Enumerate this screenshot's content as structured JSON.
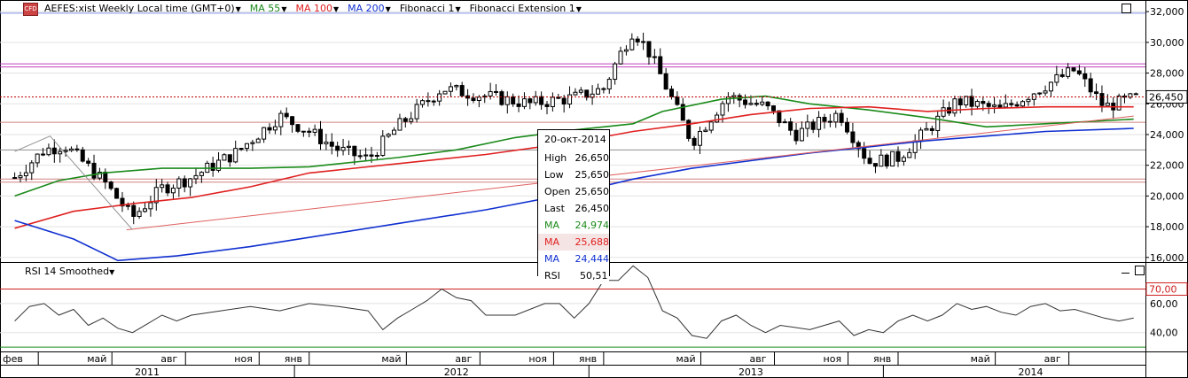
{
  "toolbar": {
    "symbol_icon_text": "CFD",
    "symbol": "AEFES:xist Weekly Local time (GMT+0)",
    "items": [
      {
        "label": "MA 55",
        "color": "#1a8a1a"
      },
      {
        "label": "MA 100",
        "color": "#e02020"
      },
      {
        "label": "MA 200",
        "color": "#1030d0"
      },
      {
        "label": "Fibonacci 1",
        "color": "#000000"
      },
      {
        "label": "Fibonacci Extension 1",
        "color": "#000000"
      }
    ]
  },
  "rsi_panel": {
    "label": "RSI 14 Smoothed",
    "levels": [
      {
        "value": 70,
        "label": "70,00",
        "color": "#d02020"
      },
      {
        "value": 30,
        "label": "",
        "color": "#1a8a1a"
      }
    ]
  },
  "tooltip": {
    "date": "20-окт-2014",
    "rows": [
      {
        "k": "High",
        "v": "26,650",
        "color": "#000000",
        "bg": "#ffffff"
      },
      {
        "k": "Low",
        "v": "25,650",
        "color": "#000000",
        "bg": "#ffffff"
      },
      {
        "k": "Open",
        "v": "25,650",
        "color": "#000000",
        "bg": "#ffffff"
      },
      {
        "k": "Last",
        "v": "26,450",
        "color": "#000000",
        "bg": "#ffffff"
      },
      {
        "k": "MA",
        "v": "24,974",
        "color": "#1a8a1a",
        "bg": "#ffffff"
      },
      {
        "k": "MA",
        "v": "25,688",
        "color": "#e02020",
        "bg": "#f4e4e4"
      },
      {
        "k": "MA",
        "v": "24,444",
        "color": "#1030d0",
        "bg": "#ffffff"
      },
      {
        "k": "RSI",
        "v": "50,51",
        "color": "#000000",
        "bg": "#ffffff"
      }
    ]
  },
  "chart_data": {
    "type": "candlestick",
    "title": "AEFES:xist Weekly",
    "y_axis": {
      "ticks": [
        "32,000",
        "30,000",
        "28,000",
        "26,000",
        "24,000",
        "22,000",
        "20,000",
        "18,000",
        "16,000"
      ],
      "ylim": [
        15700,
        32700
      ]
    },
    "rsi_axis": {
      "ticks": [
        "60,00",
        "40,00"
      ],
      "ylim": [
        27,
        88
      ]
    },
    "last_price": {
      "value": 26450,
      "label": "26,450",
      "color": "#c00000"
    },
    "horizontal_lines": [
      {
        "value": 31900,
        "color": "#8090e0"
      },
      {
        "value": 28600,
        "color": "#c040c0"
      },
      {
        "value": 28400,
        "color": "#c040c0"
      },
      {
        "value": 24800,
        "color": "#d08080"
      },
      {
        "value": 23000,
        "color": "#909090"
      },
      {
        "value": 21100,
        "color": "#d08080"
      },
      {
        "value": 20900,
        "color": "#d08080"
      }
    ],
    "x_axis": {
      "month_ticks": [
        "фев",
        "май",
        "авг",
        "ноя",
        "янв",
        "май",
        "авг",
        "ноя",
        "янв",
        "май",
        "авг",
        "ноя",
        "янв",
        "май",
        "авг"
      ],
      "years": [
        "2011",
        "2012",
        "2013",
        "2014"
      ]
    },
    "series": [
      {
        "name": "MA 55",
        "color": "#1a8a1a",
        "points": [
          [
            2011.0,
            20000
          ],
          [
            2011.15,
            21000
          ],
          [
            2011.3,
            21500
          ],
          [
            2011.5,
            21800
          ],
          [
            2011.8,
            21800
          ],
          [
            2012.0,
            21900
          ],
          [
            2012.3,
            22500
          ],
          [
            2012.5,
            23000
          ],
          [
            2012.7,
            23800
          ],
          [
            2012.9,
            24300
          ],
          [
            2013.1,
            24700
          ],
          [
            2013.2,
            25500
          ],
          [
            2013.4,
            26300
          ],
          [
            2013.55,
            26500
          ],
          [
            2013.7,
            26000
          ],
          [
            2013.9,
            25600
          ],
          [
            2014.1,
            25100
          ],
          [
            2014.3,
            24500
          ],
          [
            2014.5,
            24700
          ],
          [
            2014.8,
            25000
          ]
        ]
      },
      {
        "name": "MA 100",
        "color": "#e02020",
        "points": [
          [
            2011.0,
            17900
          ],
          [
            2011.2,
            19000
          ],
          [
            2011.4,
            19500
          ],
          [
            2011.6,
            19900
          ],
          [
            2011.8,
            20600
          ],
          [
            2012.0,
            21500
          ],
          [
            2012.3,
            22100
          ],
          [
            2012.6,
            22700
          ],
          [
            2012.9,
            23500
          ],
          [
            2013.1,
            24200
          ],
          [
            2013.3,
            24700
          ],
          [
            2013.5,
            25300
          ],
          [
            2013.7,
            25700
          ],
          [
            2013.9,
            25800
          ],
          [
            2014.1,
            25500
          ],
          [
            2014.3,
            25700
          ],
          [
            2014.5,
            25800
          ],
          [
            2014.8,
            25800
          ]
        ]
      },
      {
        "name": "MA 200",
        "color": "#1030d0",
        "points": [
          [
            2011.0,
            18400
          ],
          [
            2011.2,
            17200
          ],
          [
            2011.35,
            15800
          ],
          [
            2011.55,
            16100
          ],
          [
            2011.8,
            16700
          ],
          [
            2012.0,
            17300
          ],
          [
            2012.3,
            18200
          ],
          [
            2012.6,
            19100
          ],
          [
            2012.9,
            20200
          ],
          [
            2013.1,
            21100
          ],
          [
            2013.3,
            21800
          ],
          [
            2013.5,
            22300
          ],
          [
            2013.7,
            22800
          ],
          [
            2013.9,
            23200
          ],
          [
            2014.1,
            23600
          ],
          [
            2014.3,
            23900
          ],
          [
            2014.5,
            24200
          ],
          [
            2014.8,
            24400
          ]
        ]
      },
      {
        "name": "Fib Extension",
        "color": "#e06060",
        "points": [
          [
            2011.38,
            17800
          ],
          [
            2014.8,
            25200
          ]
        ]
      },
      {
        "name": "Fib Extension grey",
        "color": "#909090",
        "points": [
          [
            2011.0,
            22900
          ],
          [
            2011.12,
            23900
          ],
          [
            2011.4,
            17800
          ]
        ]
      }
    ],
    "rsi": [
      [
        2011.0,
        48
      ],
      [
        2011.05,
        58
      ],
      [
        2011.1,
        60
      ],
      [
        2011.15,
        52
      ],
      [
        2011.2,
        56
      ],
      [
        2011.25,
        45
      ],
      [
        2011.3,
        50
      ],
      [
        2011.35,
        43
      ],
      [
        2011.4,
        40
      ],
      [
        2011.45,
        46
      ],
      [
        2011.5,
        52
      ],
      [
        2011.55,
        48
      ],
      [
        2011.6,
        52
      ],
      [
        2011.7,
        55
      ],
      [
        2011.8,
        58
      ],
      [
        2011.9,
        55
      ],
      [
        2012.0,
        60
      ],
      [
        2012.1,
        58
      ],
      [
        2012.2,
        55
      ],
      [
        2012.25,
        42
      ],
      [
        2012.3,
        50
      ],
      [
        2012.35,
        56
      ],
      [
        2012.4,
        62
      ],
      [
        2012.45,
        70
      ],
      [
        2012.5,
        64
      ],
      [
        2012.55,
        62
      ],
      [
        2012.6,
        52
      ],
      [
        2012.7,
        52
      ],
      [
        2012.8,
        60
      ],
      [
        2012.85,
        60
      ],
      [
        2012.9,
        50
      ],
      [
        2012.95,
        60
      ],
      [
        2013.0,
        76
      ],
      [
        2013.05,
        76
      ],
      [
        2013.1,
        86
      ],
      [
        2013.15,
        78
      ],
      [
        2013.2,
        55
      ],
      [
        2013.25,
        50
      ],
      [
        2013.3,
        38
      ],
      [
        2013.35,
        36
      ],
      [
        2013.4,
        48
      ],
      [
        2013.45,
        52
      ],
      [
        2013.5,
        45
      ],
      [
        2013.55,
        40
      ],
      [
        2013.6,
        45
      ],
      [
        2013.7,
        42
      ],
      [
        2013.8,
        48
      ],
      [
        2013.85,
        38
      ],
      [
        2013.9,
        42
      ],
      [
        2013.95,
        40
      ],
      [
        2014.0,
        48
      ],
      [
        2014.05,
        52
      ],
      [
        2014.1,
        48
      ],
      [
        2014.15,
        52
      ],
      [
        2014.2,
        60
      ],
      [
        2014.25,
        56
      ],
      [
        2014.3,
        58
      ],
      [
        2014.35,
        54
      ],
      [
        2014.4,
        52
      ],
      [
        2014.45,
        58
      ],
      [
        2014.5,
        60
      ],
      [
        2014.55,
        55
      ],
      [
        2014.6,
        56
      ],
      [
        2014.7,
        50
      ],
      [
        2014.75,
        48
      ],
      [
        2014.8,
        50
      ]
    ]
  },
  "title_bar_icon": "square-icon"
}
